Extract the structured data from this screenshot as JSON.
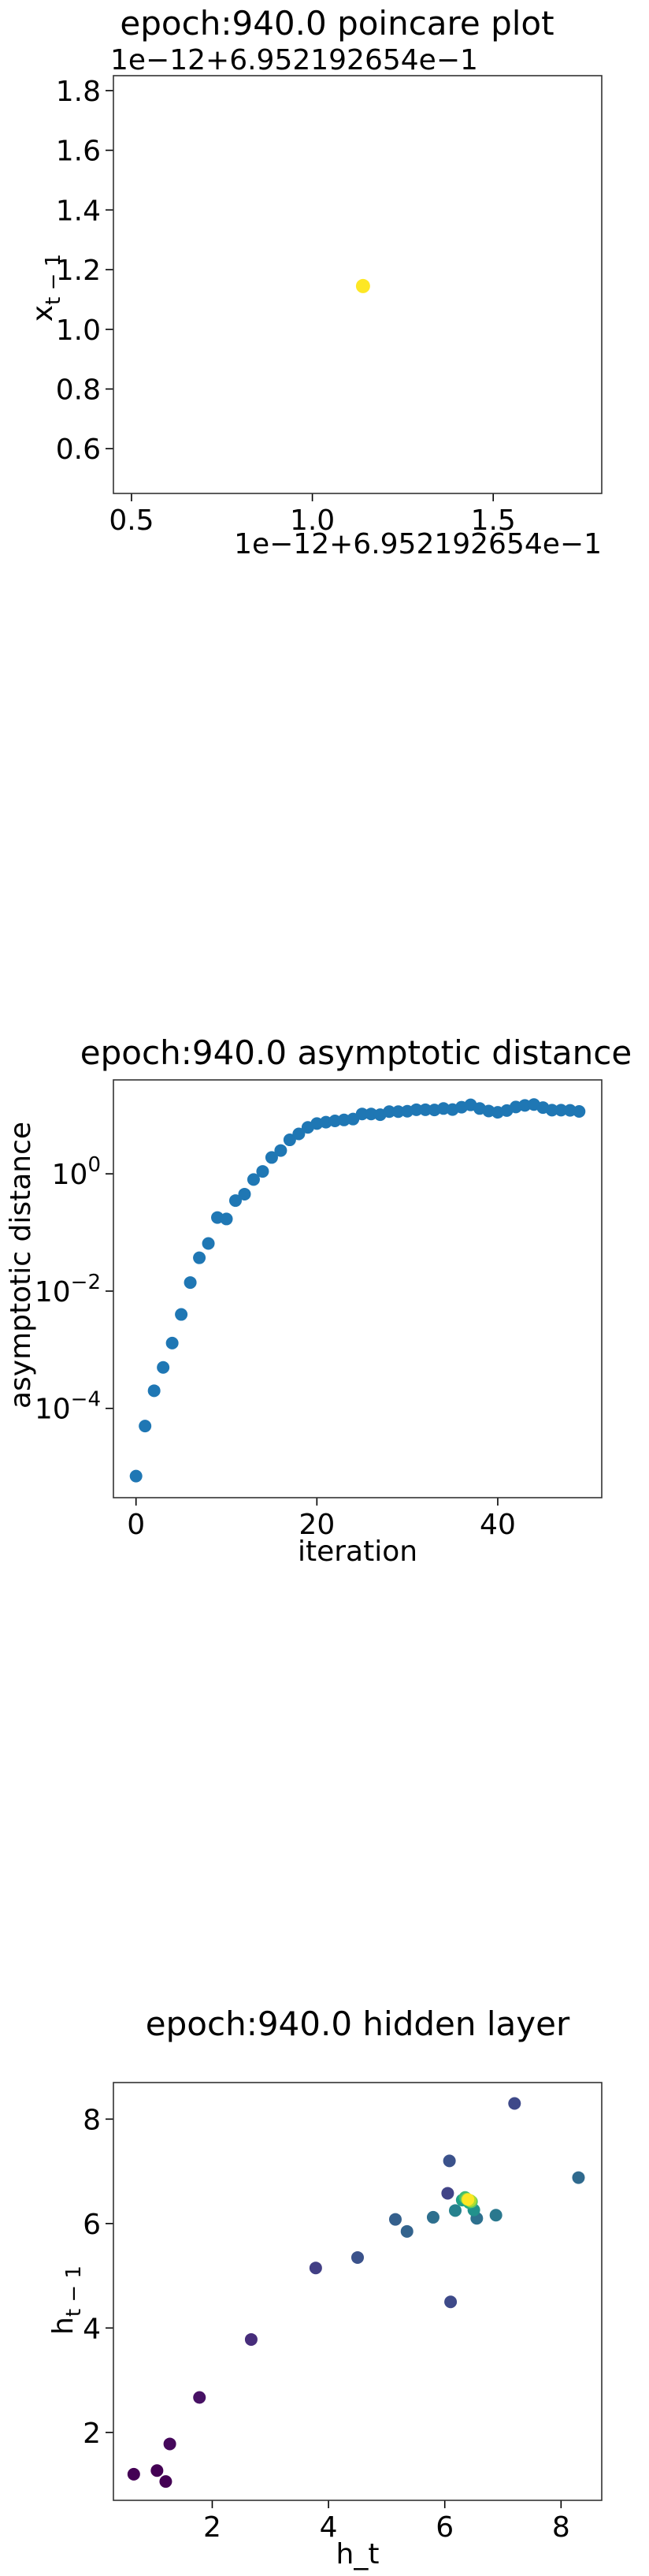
{
  "chart_data": [
    {
      "type": "scatter",
      "title": "epoch:940.0 poincare plot",
      "xlabel": "",
      "ylabel": "x_{t-1}",
      "x_offset_text": "1e−12+6.952192654e−1",
      "y_offset_text": "1e−12+6.952192654e−1",
      "xlim": [
        0.45,
        1.8
      ],
      "ylim": [
        0.45,
        1.85
      ],
      "x_ticks": [
        0.5,
        1.0,
        1.5
      ],
      "x_tick_labels": [
        "0.5",
        "1.0",
        "1.5"
      ],
      "y_ticks": [
        0.6,
        0.8,
        1.0,
        1.2,
        1.4,
        1.6,
        1.8
      ],
      "y_tick_labels": [
        "0.6",
        "0.8",
        "1.0",
        "1.2",
        "1.4",
        "1.6",
        "1.8"
      ],
      "points": [
        {
          "x": 1.14,
          "y": 1.145
        }
      ],
      "point_color": "#fde725",
      "grid": false
    },
    {
      "type": "scatter",
      "title": "epoch:940.0 asymptotic distance",
      "xlabel": "iteration",
      "ylabel": "asymptotic distance",
      "yscale": "log",
      "xlim": [
        -2.5,
        51.5
      ],
      "ylim": [
        3e-06,
        40
      ],
      "x_ticks": [
        0,
        20,
        40
      ],
      "x_tick_labels": [
        "0",
        "20",
        "40"
      ],
      "y_ticks": [
        0.0001,
        0.01,
        1
      ],
      "y_tick_labels_base": [
        "10",
        "10",
        "10"
      ],
      "y_tick_labels_exp": [
        "−4",
        "−2",
        "0"
      ],
      "x": [
        0,
        1,
        2,
        3,
        4,
        5,
        6,
        7,
        8,
        9,
        10,
        11,
        12,
        13,
        14,
        15,
        16,
        17,
        18,
        19,
        20,
        21,
        22,
        23,
        24,
        25,
        26,
        27,
        28,
        29,
        30,
        31,
        32,
        33,
        34,
        35,
        36,
        37,
        38,
        39,
        40,
        41,
        42,
        43,
        44,
        45,
        46,
        47,
        48,
        49
      ],
      "y": [
        7e-06,
        5e-05,
        0.0002,
        0.0005,
        0.0013,
        0.004,
        0.014,
        0.037,
        0.065,
        0.18,
        0.17,
        0.35,
        0.45,
        0.8,
        1.1,
        1.9,
        2.5,
        3.8,
        4.8,
        6.2,
        7.2,
        7.6,
        8.0,
        8.3,
        8.6,
        10.5,
        10.5,
        10.2,
        11.5,
        11.5,
        11.7,
        12.4,
        12.4,
        12.3,
        13.0,
        12.5,
        13.7,
        15.0,
        13.0,
        11.8,
        11.2,
        12.0,
        13.8,
        14.7,
        15.2,
        13.5,
        12.2,
        12.2,
        12.1,
        11.6
      ],
      "point_color": "#1f77b4",
      "grid": false
    },
    {
      "type": "scatter",
      "title": "epoch:940.0 hidden layer",
      "xlabel": "h_t",
      "ylabel": "h_{t-1}",
      "xlim": [
        0.3,
        8.7
      ],
      "ylim": [
        0.7,
        8.7
      ],
      "x_ticks": [
        2,
        4,
        6,
        8
      ],
      "x_tick_labels": [
        "2",
        "4",
        "6",
        "8"
      ],
      "y_ticks": [
        2,
        4,
        6,
        8
      ],
      "y_tick_labels": [
        "2",
        "4",
        "6",
        "8"
      ],
      "points": [
        {
          "x": 0.65,
          "y": 1.2,
          "c": "#440154"
        },
        {
          "x": 1.05,
          "y": 1.27,
          "c": "#440154"
        },
        {
          "x": 1.2,
          "y": 1.06,
          "c": "#440154"
        },
        {
          "x": 1.27,
          "y": 1.78,
          "c": "#45085b"
        },
        {
          "x": 1.78,
          "y": 2.67,
          "c": "#471164"
        },
        {
          "x": 2.67,
          "y": 3.78,
          "c": "#472d7b"
        },
        {
          "x": 3.78,
          "y": 5.15,
          "c": "#423f85"
        },
        {
          "x": 4.5,
          "y": 5.35,
          "c": "#3b528b"
        },
        {
          "x": 5.15,
          "y": 6.08,
          "c": "#35608d"
        },
        {
          "x": 5.35,
          "y": 5.85,
          "c": "#33638d"
        },
        {
          "x": 5.8,
          "y": 6.12,
          "c": "#2e6f8e"
        },
        {
          "x": 6.08,
          "y": 7.2,
          "c": "#3b528b"
        },
        {
          "x": 7.2,
          "y": 8.3,
          "c": "#3e4989"
        },
        {
          "x": 8.3,
          "y": 6.88,
          "c": "#306a8e"
        },
        {
          "x": 6.1,
          "y": 4.5,
          "c": "#3e4a89"
        },
        {
          "x": 6.88,
          "y": 6.16,
          "c": "#2a788e"
        },
        {
          "x": 6.55,
          "y": 6.1,
          "c": "#2d708e"
        },
        {
          "x": 6.05,
          "y": 6.58,
          "c": "#414487"
        },
        {
          "x": 6.5,
          "y": 6.26,
          "c": "#21918c"
        },
        {
          "x": 6.18,
          "y": 6.25,
          "c": "#26828e"
        },
        {
          "x": 6.3,
          "y": 6.45,
          "c": "#1fa088"
        },
        {
          "x": 6.42,
          "y": 6.4,
          "c": "#28ae80"
        },
        {
          "x": 6.35,
          "y": 6.5,
          "c": "#3fbc73"
        },
        {
          "x": 6.46,
          "y": 6.42,
          "c": "#5ec962"
        },
        {
          "x": 6.38,
          "y": 6.47,
          "c": "#7ad151"
        },
        {
          "x": 6.44,
          "y": 6.44,
          "c": "#addc30"
        },
        {
          "x": 6.4,
          "y": 6.46,
          "c": "#fde725"
        }
      ],
      "grid": false
    }
  ]
}
